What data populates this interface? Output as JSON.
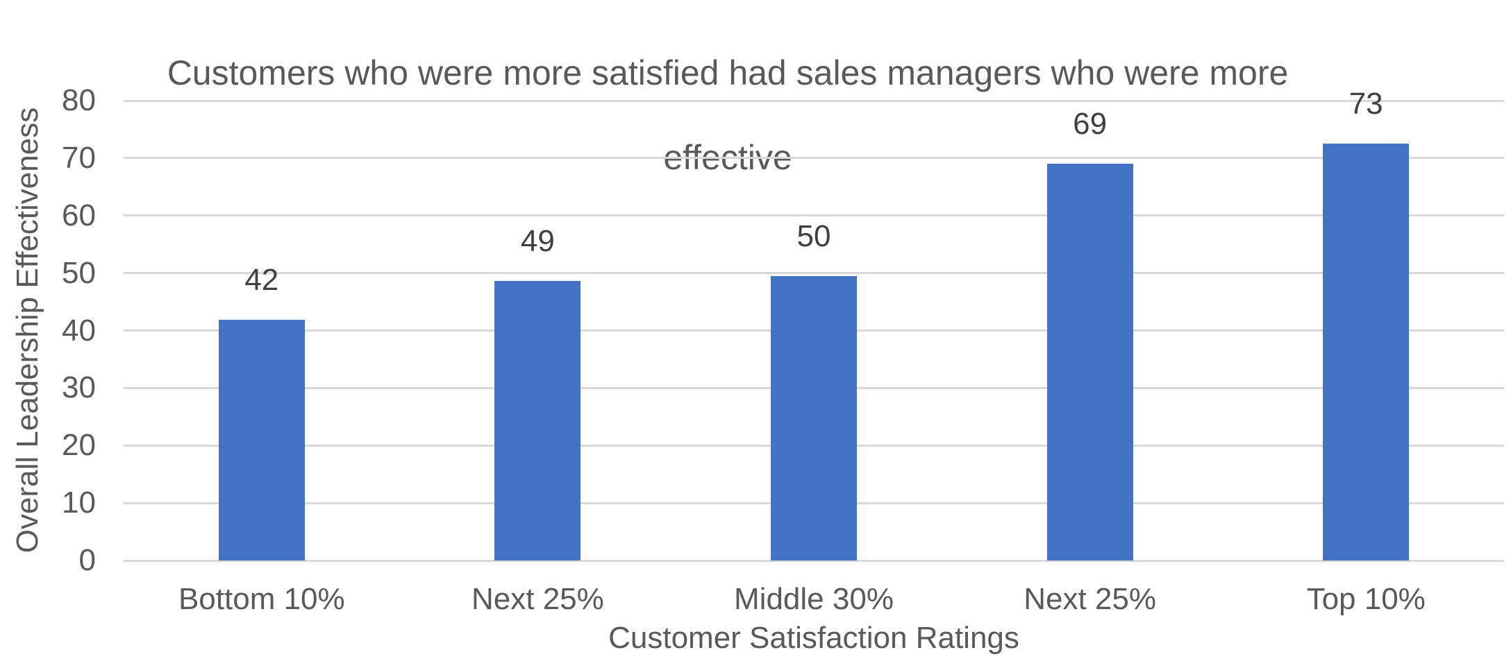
{
  "chart_data": {
    "type": "bar",
    "title": "Customers who were more satisfied had sales managers who were more effective",
    "title_lines": [
      "Customers who were more satisfied had sales managers who were more",
      "effective"
    ],
    "categories": [
      "Bottom 10%",
      "Next 25%",
      "Middle 30%",
      "Next 25%",
      "Top 10%"
    ],
    "values": [
      42,
      49,
      50,
      69,
      73
    ],
    "bar_rendered_values": [
      41.9,
      48.6,
      49.5,
      69.0,
      72.5
    ],
    "xlabel": "Customer Satisfaction Ratings",
    "ylabel": "Overall Leadership Effectiveness",
    "ylim": [
      0,
      80
    ],
    "yticks": [
      0,
      10,
      20,
      30,
      40,
      50,
      60,
      70,
      80
    ],
    "grid": "horizontal",
    "legend": "none",
    "colors": {
      "bar": "#4472C4",
      "gridline": "#D9D9D9",
      "title_text": "#595959",
      "axis_text": "#595959",
      "data_label_text": "#404040",
      "background": "#FFFFFF"
    }
  }
}
